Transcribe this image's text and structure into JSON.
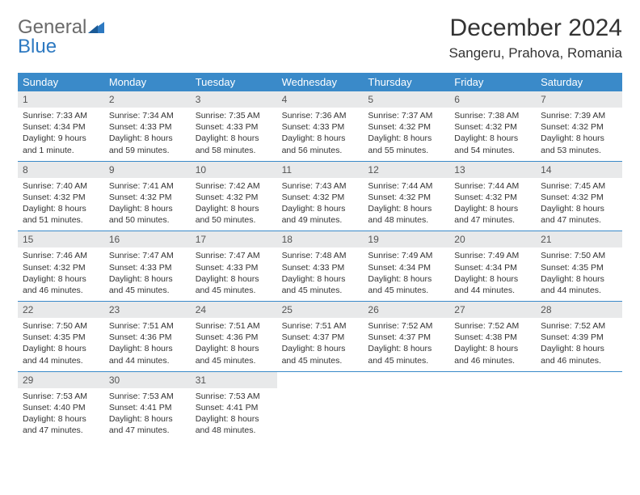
{
  "brand": {
    "general": "General",
    "blue": "Blue"
  },
  "title": "December 2024",
  "subtitle": "Sangeru, Prahova, Romania",
  "colors": {
    "header_bar": "#3a8ac9",
    "daynum_bg": "#e8e9ea",
    "text": "#333333",
    "logo_gray": "#6a6a6a",
    "logo_blue": "#2d79c1"
  },
  "dow": [
    "Sunday",
    "Monday",
    "Tuesday",
    "Wednesday",
    "Thursday",
    "Friday",
    "Saturday"
  ],
  "days": [
    {
      "n": "1",
      "sr": "Sunrise: 7:33 AM",
      "ss": "Sunset: 4:34 PM",
      "d1": "Daylight: 9 hours",
      "d2": "and 1 minute."
    },
    {
      "n": "2",
      "sr": "Sunrise: 7:34 AM",
      "ss": "Sunset: 4:33 PM",
      "d1": "Daylight: 8 hours",
      "d2": "and 59 minutes."
    },
    {
      "n": "3",
      "sr": "Sunrise: 7:35 AM",
      "ss": "Sunset: 4:33 PM",
      "d1": "Daylight: 8 hours",
      "d2": "and 58 minutes."
    },
    {
      "n": "4",
      "sr": "Sunrise: 7:36 AM",
      "ss": "Sunset: 4:33 PM",
      "d1": "Daylight: 8 hours",
      "d2": "and 56 minutes."
    },
    {
      "n": "5",
      "sr": "Sunrise: 7:37 AM",
      "ss": "Sunset: 4:32 PM",
      "d1": "Daylight: 8 hours",
      "d2": "and 55 minutes."
    },
    {
      "n": "6",
      "sr": "Sunrise: 7:38 AM",
      "ss": "Sunset: 4:32 PM",
      "d1": "Daylight: 8 hours",
      "d2": "and 54 minutes."
    },
    {
      "n": "7",
      "sr": "Sunrise: 7:39 AM",
      "ss": "Sunset: 4:32 PM",
      "d1": "Daylight: 8 hours",
      "d2": "and 53 minutes."
    },
    {
      "n": "8",
      "sr": "Sunrise: 7:40 AM",
      "ss": "Sunset: 4:32 PM",
      "d1": "Daylight: 8 hours",
      "d2": "and 51 minutes."
    },
    {
      "n": "9",
      "sr": "Sunrise: 7:41 AM",
      "ss": "Sunset: 4:32 PM",
      "d1": "Daylight: 8 hours",
      "d2": "and 50 minutes."
    },
    {
      "n": "10",
      "sr": "Sunrise: 7:42 AM",
      "ss": "Sunset: 4:32 PM",
      "d1": "Daylight: 8 hours",
      "d2": "and 50 minutes."
    },
    {
      "n": "11",
      "sr": "Sunrise: 7:43 AM",
      "ss": "Sunset: 4:32 PM",
      "d1": "Daylight: 8 hours",
      "d2": "and 49 minutes."
    },
    {
      "n": "12",
      "sr": "Sunrise: 7:44 AM",
      "ss": "Sunset: 4:32 PM",
      "d1": "Daylight: 8 hours",
      "d2": "and 48 minutes."
    },
    {
      "n": "13",
      "sr": "Sunrise: 7:44 AM",
      "ss": "Sunset: 4:32 PM",
      "d1": "Daylight: 8 hours",
      "d2": "and 47 minutes."
    },
    {
      "n": "14",
      "sr": "Sunrise: 7:45 AM",
      "ss": "Sunset: 4:32 PM",
      "d1": "Daylight: 8 hours",
      "d2": "and 47 minutes."
    },
    {
      "n": "15",
      "sr": "Sunrise: 7:46 AM",
      "ss": "Sunset: 4:32 PM",
      "d1": "Daylight: 8 hours",
      "d2": "and 46 minutes."
    },
    {
      "n": "16",
      "sr": "Sunrise: 7:47 AM",
      "ss": "Sunset: 4:33 PM",
      "d1": "Daylight: 8 hours",
      "d2": "and 45 minutes."
    },
    {
      "n": "17",
      "sr": "Sunrise: 7:47 AM",
      "ss": "Sunset: 4:33 PM",
      "d1": "Daylight: 8 hours",
      "d2": "and 45 minutes."
    },
    {
      "n": "18",
      "sr": "Sunrise: 7:48 AM",
      "ss": "Sunset: 4:33 PM",
      "d1": "Daylight: 8 hours",
      "d2": "and 45 minutes."
    },
    {
      "n": "19",
      "sr": "Sunrise: 7:49 AM",
      "ss": "Sunset: 4:34 PM",
      "d1": "Daylight: 8 hours",
      "d2": "and 45 minutes."
    },
    {
      "n": "20",
      "sr": "Sunrise: 7:49 AM",
      "ss": "Sunset: 4:34 PM",
      "d1": "Daylight: 8 hours",
      "d2": "and 44 minutes."
    },
    {
      "n": "21",
      "sr": "Sunrise: 7:50 AM",
      "ss": "Sunset: 4:35 PM",
      "d1": "Daylight: 8 hours",
      "d2": "and 44 minutes."
    },
    {
      "n": "22",
      "sr": "Sunrise: 7:50 AM",
      "ss": "Sunset: 4:35 PM",
      "d1": "Daylight: 8 hours",
      "d2": "and 44 minutes."
    },
    {
      "n": "23",
      "sr": "Sunrise: 7:51 AM",
      "ss": "Sunset: 4:36 PM",
      "d1": "Daylight: 8 hours",
      "d2": "and 44 minutes."
    },
    {
      "n": "24",
      "sr": "Sunrise: 7:51 AM",
      "ss": "Sunset: 4:36 PM",
      "d1": "Daylight: 8 hours",
      "d2": "and 45 minutes."
    },
    {
      "n": "25",
      "sr": "Sunrise: 7:51 AM",
      "ss": "Sunset: 4:37 PM",
      "d1": "Daylight: 8 hours",
      "d2": "and 45 minutes."
    },
    {
      "n": "26",
      "sr": "Sunrise: 7:52 AM",
      "ss": "Sunset: 4:37 PM",
      "d1": "Daylight: 8 hours",
      "d2": "and 45 minutes."
    },
    {
      "n": "27",
      "sr": "Sunrise: 7:52 AM",
      "ss": "Sunset: 4:38 PM",
      "d1": "Daylight: 8 hours",
      "d2": "and 46 minutes."
    },
    {
      "n": "28",
      "sr": "Sunrise: 7:52 AM",
      "ss": "Sunset: 4:39 PM",
      "d1": "Daylight: 8 hours",
      "d2": "and 46 minutes."
    },
    {
      "n": "29",
      "sr": "Sunrise: 7:53 AM",
      "ss": "Sunset: 4:40 PM",
      "d1": "Daylight: 8 hours",
      "d2": "and 47 minutes."
    },
    {
      "n": "30",
      "sr": "Sunrise: 7:53 AM",
      "ss": "Sunset: 4:41 PM",
      "d1": "Daylight: 8 hours",
      "d2": "and 47 minutes."
    },
    {
      "n": "31",
      "sr": "Sunrise: 7:53 AM",
      "ss": "Sunset: 4:41 PM",
      "d1": "Daylight: 8 hours",
      "d2": "and 48 minutes."
    }
  ],
  "weeks": 5,
  "trailing_empty": 4
}
